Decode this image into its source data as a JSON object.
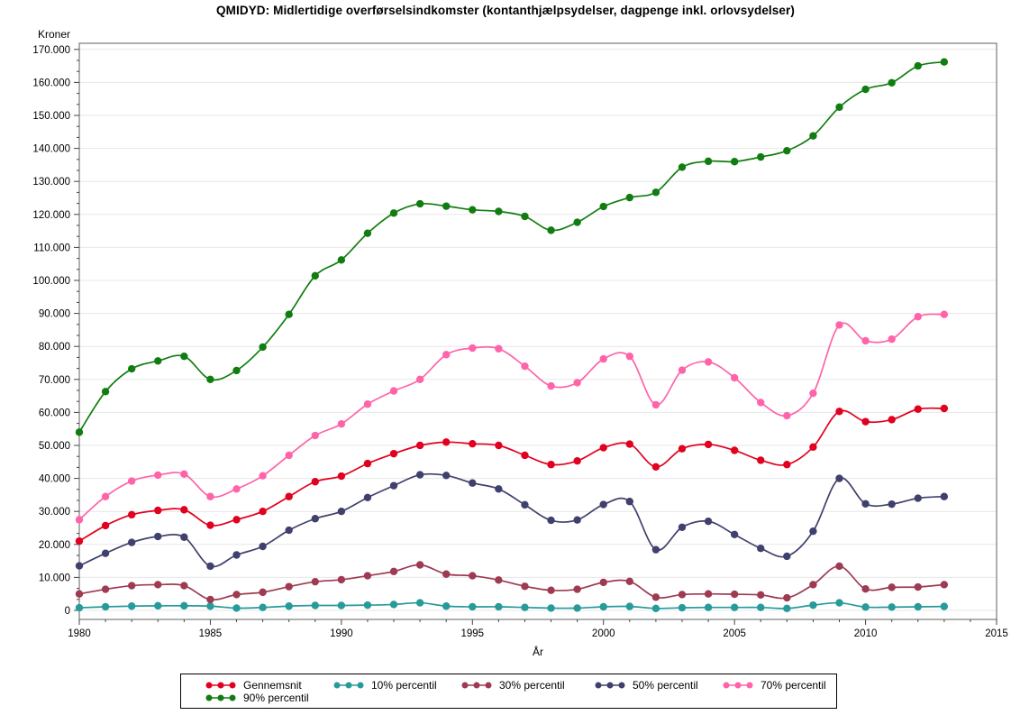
{
  "title": "QMIDYD: Midlertidige overførselsindkomster (kontanthjælpsydelser, dagpenge inkl. orlovsydelser)",
  "chart_data": {
    "type": "line",
    "title": "QMIDYD: Midlertidige overførselsindkomster (kontanthjælpsydelser, dagpenge inkl. orlovsydelser)",
    "ylabel": "Kroner",
    "xlabel": "År",
    "xlim": [
      1980,
      2015
    ],
    "ylim": [
      0,
      170000
    ],
    "x_tick_step": 5,
    "y_tick_step": 10000,
    "grid": "horizontal",
    "legend_position": "bottom-box",
    "marker": "filled-circle",
    "x": [
      1980,
      1981,
      1982,
      1983,
      1984,
      1985,
      1986,
      1987,
      1988,
      1989,
      1990,
      1991,
      1992,
      1993,
      1994,
      1995,
      1996,
      1997,
      1998,
      1999,
      2000,
      2001,
      2002,
      2003,
      2004,
      2005,
      2006,
      2007,
      2008,
      2009,
      2010,
      2011,
      2012,
      2013
    ],
    "series": [
      {
        "name": "Gennemsnit",
        "color": "#e1001f",
        "values": [
          21000,
          25700,
          29000,
          30300,
          30500,
          25800,
          27500,
          30000,
          34500,
          39000,
          40700,
          44500,
          47500,
          50000,
          51000,
          50500,
          50000,
          47000,
          44200,
          45300,
          49300,
          50400,
          43500,
          49000,
          50300,
          48500,
          45500,
          44200,
          49500,
          60300,
          57200,
          57800,
          61000,
          61200
        ]
      },
      {
        "name": "10% percentil",
        "color": "#279a9a",
        "values": [
          800,
          1100,
          1300,
          1400,
          1400,
          1300,
          700,
          900,
          1300,
          1500,
          1500,
          1600,
          1800,
          2300,
          1300,
          1100,
          1100,
          900,
          700,
          700,
          1100,
          1200,
          600,
          800,
          900,
          900,
          900,
          600,
          1600,
          2300,
          1000,
          1000,
          1100,
          1200
        ]
      },
      {
        "name": "30% percentil",
        "color": "#9e3a52",
        "values": [
          5000,
          6400,
          7500,
          7800,
          7500,
          3300,
          4800,
          5500,
          7200,
          8700,
          9300,
          10500,
          11800,
          13800,
          11000,
          10500,
          9200,
          7300,
          6100,
          6400,
          8500,
          8800,
          4000,
          4800,
          5000,
          4900,
          4700,
          3800,
          7800,
          13400,
          6500,
          7000,
          7100,
          7800
        ]
      },
      {
        "name": "50% percentil",
        "color": "#40406e",
        "values": [
          13500,
          17300,
          20600,
          22400,
          22200,
          13400,
          16800,
          19400,
          24300,
          27800,
          30000,
          34200,
          37800,
          41100,
          40900,
          38600,
          36800,
          32000,
          27300,
          27400,
          32100,
          33000,
          18400,
          25200,
          27000,
          23000,
          18800,
          16400,
          24000,
          40000,
          32300,
          32200,
          34000,
          34500
        ]
      },
      {
        "name": "70% percentil",
        "color": "#ff63a9",
        "values": [
          27500,
          34500,
          39200,
          41000,
          41300,
          34500,
          36800,
          40800,
          47000,
          53000,
          56500,
          62500,
          66500,
          70000,
          77500,
          79500,
          79300,
          74000,
          68000,
          69000,
          76200,
          77000,
          62300,
          72800,
          75300,
          70500,
          63000,
          59000,
          65800,
          86500,
          81700,
          82200,
          89000,
          89700
        ]
      },
      {
        "name": "90% percentil",
        "color": "#117d11",
        "values": [
          54000,
          66300,
          73200,
          75600,
          77000,
          70000,
          72700,
          79800,
          89700,
          101400,
          106200,
          114300,
          120400,
          123200,
          122500,
          121400,
          120900,
          119400,
          115200,
          117600,
          122400,
          125100,
          126700,
          134300,
          136100,
          136000,
          137400,
          139300,
          143800,
          152500,
          157900,
          159900,
          165000,
          166200
        ]
      }
    ],
    "style": {
      "grid_color": "#e7e7e7",
      "frame_color": "#7a7a7a",
      "tick_color": "#444444",
      "background": "#ffffff"
    }
  }
}
